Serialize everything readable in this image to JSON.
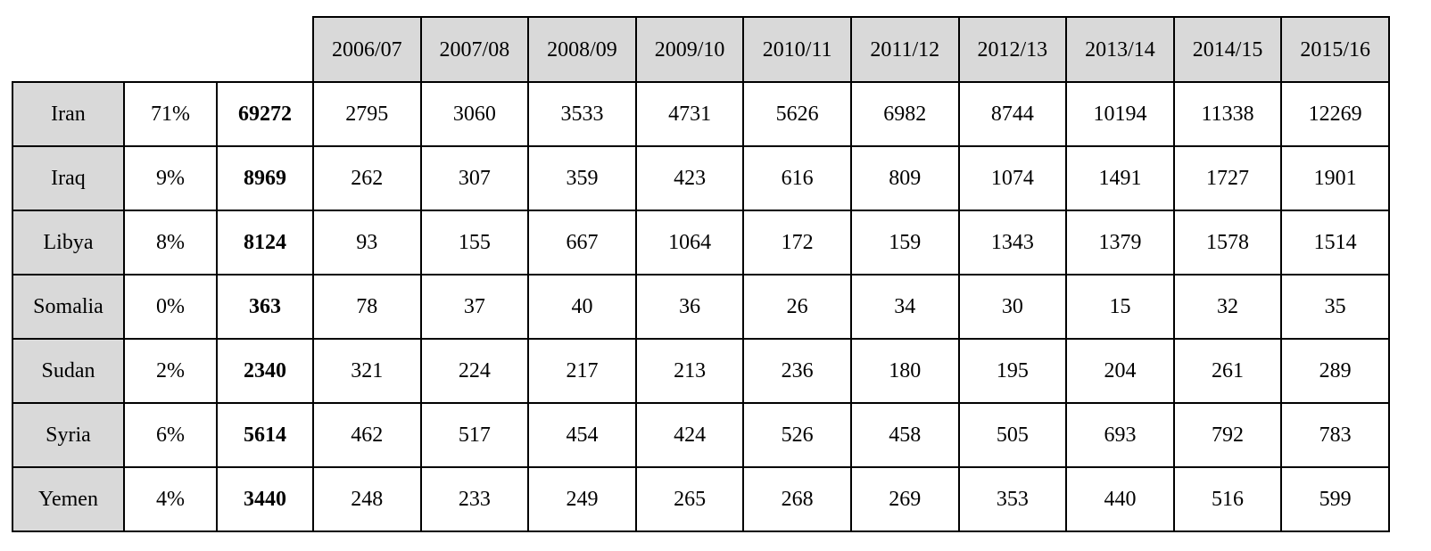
{
  "table": {
    "header": [
      "2006/07",
      "2007/08",
      "2008/09",
      "2009/10",
      "2010/11",
      "2011/12",
      "2012/13",
      "2013/14",
      "2014/15",
      "2015/16"
    ],
    "rows": [
      [
        "Iran",
        "71%",
        69272,
        2795,
        3060,
        3533,
        4731,
        5626,
        6982,
        8744,
        10194,
        11338,
        12269
      ],
      [
        "Iraq",
        "9%",
        8969,
        262,
        307,
        359,
        423,
        616,
        809,
        1074,
        1491,
        1727,
        1901
      ],
      [
        "Libya",
        "8%",
        8124,
        93,
        155,
        667,
        1064,
        172,
        159,
        1343,
        1379,
        1578,
        1514
      ],
      [
        "Somalia",
        "0%",
        363,
        78,
        37,
        40,
        36,
        26,
        34,
        30,
        15,
        32,
        35
      ],
      [
        "Sudan",
        "2%",
        2340,
        321,
        224,
        217,
        213,
        236,
        180,
        195,
        204,
        261,
        289
      ],
      [
        "Syria",
        "6%",
        5614,
        462,
        517,
        454,
        424,
        526,
        458,
        505,
        693,
        792,
        783
      ],
      [
        "Yemen",
        "4%",
        3440,
        248,
        233,
        249,
        265,
        268,
        269,
        353,
        440,
        516,
        599
      ]
    ]
  }
}
